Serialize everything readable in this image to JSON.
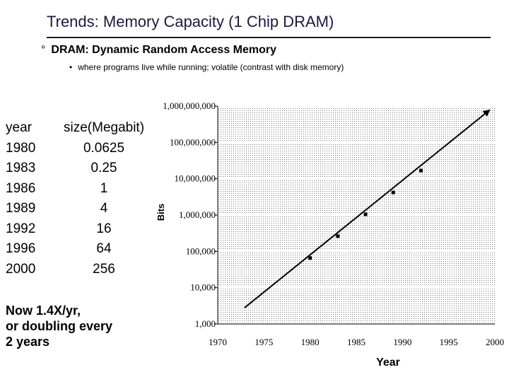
{
  "slide": {
    "title": "Trends: Memory Capacity (1 Chip DRAM)",
    "bullet1_marker": "°",
    "bullet1": "DRAM: Dynamic Random Access Memory",
    "bullet2_marker": "•",
    "bullet2": "where programs live while running; volatile (contrast with disk memory)"
  },
  "table": {
    "header_year": "year",
    "header_size": "size(Megabit)",
    "rows": [
      {
        "year": "1980",
        "size": "0.0625"
      },
      {
        "year": "1983",
        "size": "0.25"
      },
      {
        "year": "1986",
        "size": "1"
      },
      {
        "year": "1989",
        "size": "4"
      },
      {
        "year": "1992",
        "size": "16"
      },
      {
        "year": "1996",
        "size": "64"
      },
      {
        "year": "2000",
        "size": "256"
      }
    ]
  },
  "note": {
    "line1": "Now 1.4X/yr,",
    "line2": "or doubling every",
    "line3": "2 years"
  },
  "chart_data": {
    "type": "scatter",
    "scale": "log",
    "xlabel": "Year",
    "ylabel": "Bits",
    "xlim": [
      1970,
      2000
    ],
    "ylim": [
      1000,
      1000000000
    ],
    "x_ticks": [
      1970,
      1975,
      1980,
      1985,
      1990,
      1995,
      2000
    ],
    "x_tick_labels": [
      "1970",
      "1975",
      "1980",
      "1985",
      "1990",
      "1995",
      "2000"
    ],
    "y_ticks": [
      1000,
      10000,
      100000,
      1000000,
      10000000,
      100000000,
      1000000000
    ],
    "y_tick_labels": [
      "1,000",
      "10,000",
      "100,000",
      "1,000,000",
      "10,000,000",
      "100,000,000",
      "1,000,000,000"
    ],
    "points": [
      {
        "x": 1980,
        "y": 65536
      },
      {
        "x": 1983,
        "y": 262144
      },
      {
        "x": 1986,
        "y": 1048576
      },
      {
        "x": 1989,
        "y": 4194304
      },
      {
        "x": 1992,
        "y": 16777216
      }
    ],
    "trend_line": {
      "x_start": 1972.9,
      "y_start": 2800,
      "x_end": 2000,
      "y_end": 1000000000,
      "arrow": true
    },
    "grid": "dotted"
  }
}
